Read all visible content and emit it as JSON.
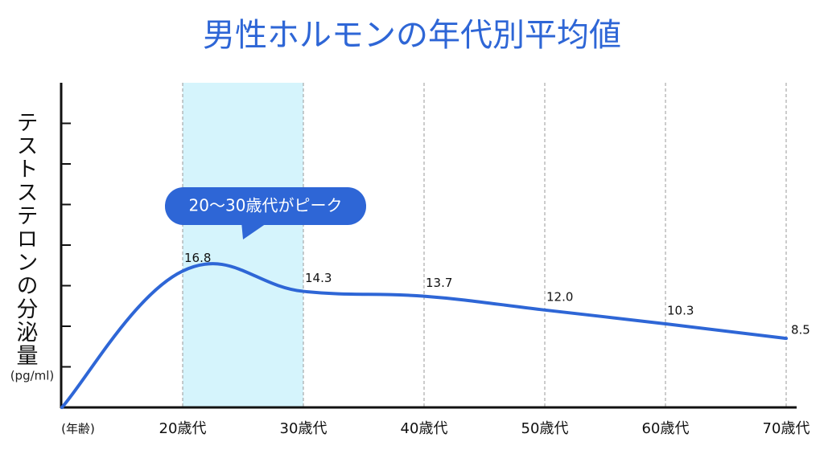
{
  "chart_data": {
    "type": "line",
    "title": "男性ホルモンの年代別平均値",
    "y_label": "テストステロンの分泌量",
    "y_unit": "(pg/ml)",
    "annotation": "20〜30歳代がピーク",
    "categories": [
      "(年齢)",
      "20歳代",
      "30歳代",
      "40歳代",
      "50歳代",
      "60歳代",
      "70歳代"
    ],
    "values": [
      0,
      16.8,
      14.3,
      13.7,
      12.0,
      10.3,
      8.5
    ],
    "value_labels": [
      null,
      "16.8",
      "14.3",
      "13.7",
      "12.0",
      "10.3",
      "8.5"
    ],
    "color": "#2e66d6",
    "ylim": [
      0,
      40
    ],
    "yticks": [
      5,
      10,
      15,
      20,
      25,
      30,
      35
    ]
  }
}
